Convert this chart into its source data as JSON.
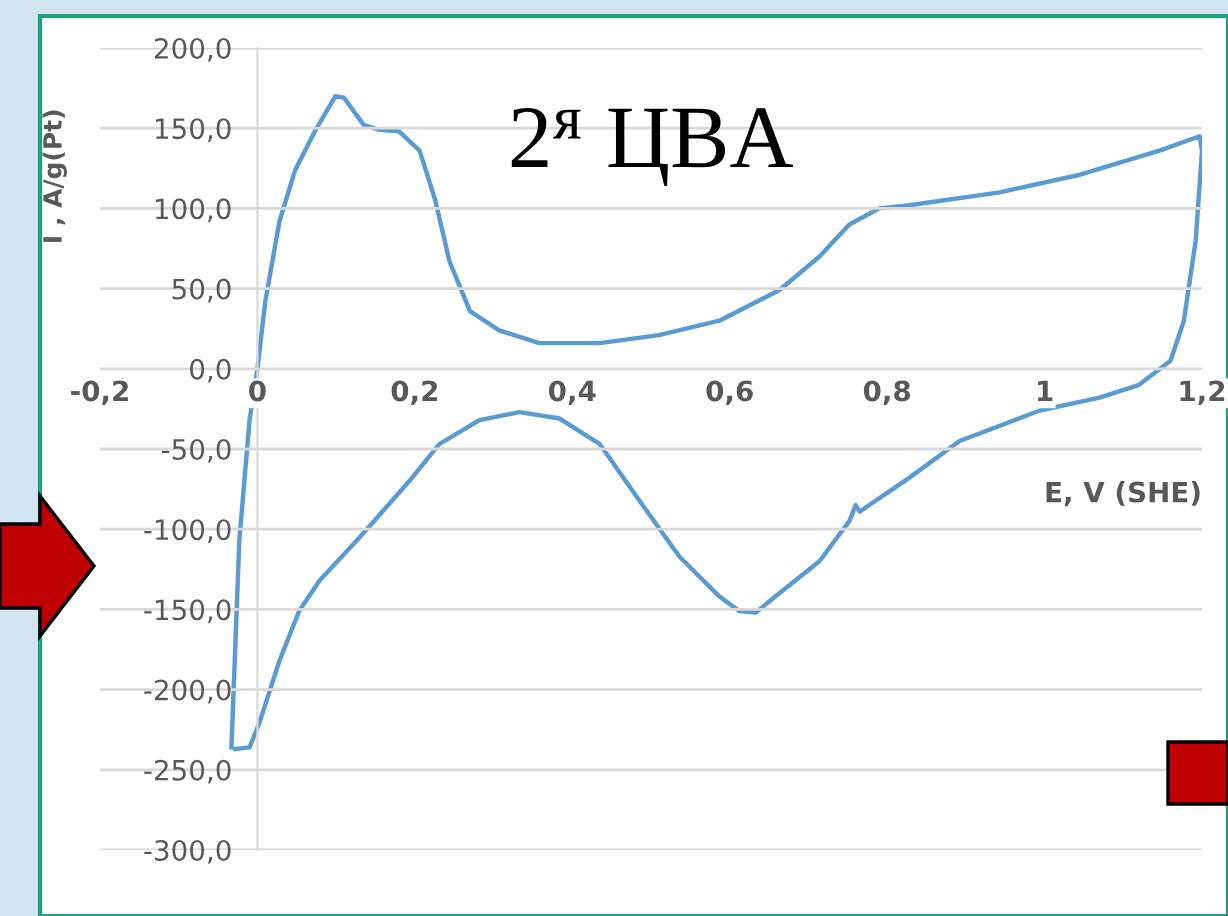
{
  "chart_data": {
    "type": "line",
    "title": "2$^{я}$ ЦВА",
    "xlabel": "E, V (SHE)",
    "ylabel": "I , A/g(Pt)",
    "xlim": [
      -0.2,
      1.2
    ],
    "ylim": [
      -300,
      200
    ],
    "xticks": [
      {
        "value": -0.2,
        "label": "-0,2"
      },
      {
        "value": 0,
        "label": "0"
      },
      {
        "value": 0.2,
        "label": "0,2"
      },
      {
        "value": 0.4,
        "label": "0,4"
      },
      {
        "value": 0.6,
        "label": "0,6"
      },
      {
        "value": 0.8,
        "label": "0,8"
      },
      {
        "value": 1,
        "label": "1"
      },
      {
        "value": 1.2,
        "label": "1,2"
      }
    ],
    "yticks": [
      {
        "value": -300,
        "label": "-300,0"
      },
      {
        "value": -250,
        "label": "-250,0"
      },
      {
        "value": -200,
        "label": "-200,0"
      },
      {
        "value": -150,
        "label": "-150,0"
      },
      {
        "value": -100,
        "label": "-100,0"
      },
      {
        "value": -50,
        "label": "-50,0"
      },
      {
        "value": 0,
        "label": "0,0"
      },
      {
        "value": 50,
        "label": "50,0"
      },
      {
        "value": 100,
        "label": "100,0"
      },
      {
        "value": 150,
        "label": "150,0"
      },
      {
        "value": 200,
        "label": "200,0"
      }
    ],
    "grid": "y",
    "legend": false,
    "marker": "none",
    "line_style": "solid",
    "series": [
      {
        "color": "#5b9bd5",
        "x": [
          -0.033,
          -0.023,
          -0.01,
          0,
          0.01,
          0.028,
          0.048,
          0.074,
          0.099,
          0.11,
          0.135,
          0.155,
          0.18,
          0.206,
          0.226,
          0.244,
          0.27,
          0.307,
          0.358,
          0.435,
          0.51,
          0.587,
          0.663,
          0.714,
          0.752,
          0.79,
          0.828,
          0.943,
          1.045,
          1.146,
          1.197,
          1.2,
          1.192,
          1.177,
          1.16,
          1.12,
          1.07,
          0.994,
          0.892,
          0.828,
          0.765,
          0.76,
          0.752,
          0.714,
          0.663,
          0.633,
          0.612,
          0.587,
          0.536,
          0.485,
          0.435,
          0.384,
          0.333,
          0.282,
          0.231,
          0.193,
          0.13,
          0.079,
          0.053,
          0.028,
          0.003,
          -0.01,
          -0.028
        ],
        "values": [
          -236,
          -107,
          -32,
          0,
          42,
          92,
          124,
          149,
          170,
          169,
          152,
          149,
          148,
          136,
          105,
          67,
          36,
          24,
          16,
          16,
          21,
          30,
          49,
          70,
          90,
          100,
          102,
          110,
          121,
          136,
          145,
          136,
          80,
          30,
          5,
          -10,
          -18,
          -26,
          -45,
          -68,
          -89,
          -85,
          -95,
          -120,
          -140,
          -152,
          -151,
          -142,
          -117,
          -82,
          -47,
          -31,
          -27,
          -32,
          -47,
          -70,
          -105,
          -132,
          -151,
          -182,
          -220,
          -236,
          -237
        ]
      }
    ]
  }
}
